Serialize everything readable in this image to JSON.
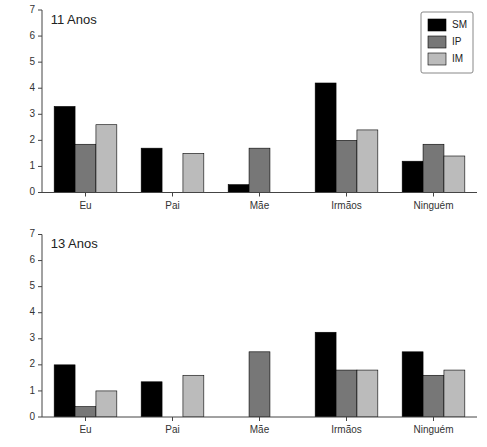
{
  "chart_data": [
    {
      "type": "bar",
      "title": "11 Anos",
      "categories": [
        "Eu",
        "Pai",
        "Mãe",
        "Irmãos",
        "Ninguém"
      ],
      "series": [
        {
          "name": "SM",
          "color": "#000000",
          "values": [
            3.3,
            1.7,
            0.3,
            4.2,
            1.2
          ]
        },
        {
          "name": "IP",
          "color": "#777777",
          "values": [
            1.85,
            0.0,
            1.7,
            2.0,
            1.85
          ]
        },
        {
          "name": "IM",
          "color": "#bbbbbb",
          "values": [
            2.6,
            1.5,
            0.0,
            2.4,
            1.4
          ]
        }
      ],
      "ylim": [
        0,
        7
      ],
      "yticks": [
        0,
        1,
        2,
        3,
        4,
        5,
        6,
        7
      ],
      "legend": "top-right"
    },
    {
      "type": "bar",
      "title": "13 Anos",
      "categories": [
        "Eu",
        "Pai",
        "Mãe",
        "Irmãos",
        "Ninguém"
      ],
      "series": [
        {
          "color": "#000000",
          "values": [
            2.0,
            1.35,
            0.0,
            3.25,
            2.5
          ]
        },
        {
          "color": "#777777",
          "values": [
            0.4,
            0.0,
            2.5,
            1.8,
            1.6
          ]
        },
        {
          "color": "#bbbbbb",
          "values": [
            1.0,
            1.6,
            0.0,
            1.8,
            1.8
          ]
        }
      ],
      "ylim": [
        0,
        7
      ],
      "yticks": [
        0,
        1,
        2,
        3,
        4,
        5,
        6,
        7
      ]
    }
  ]
}
